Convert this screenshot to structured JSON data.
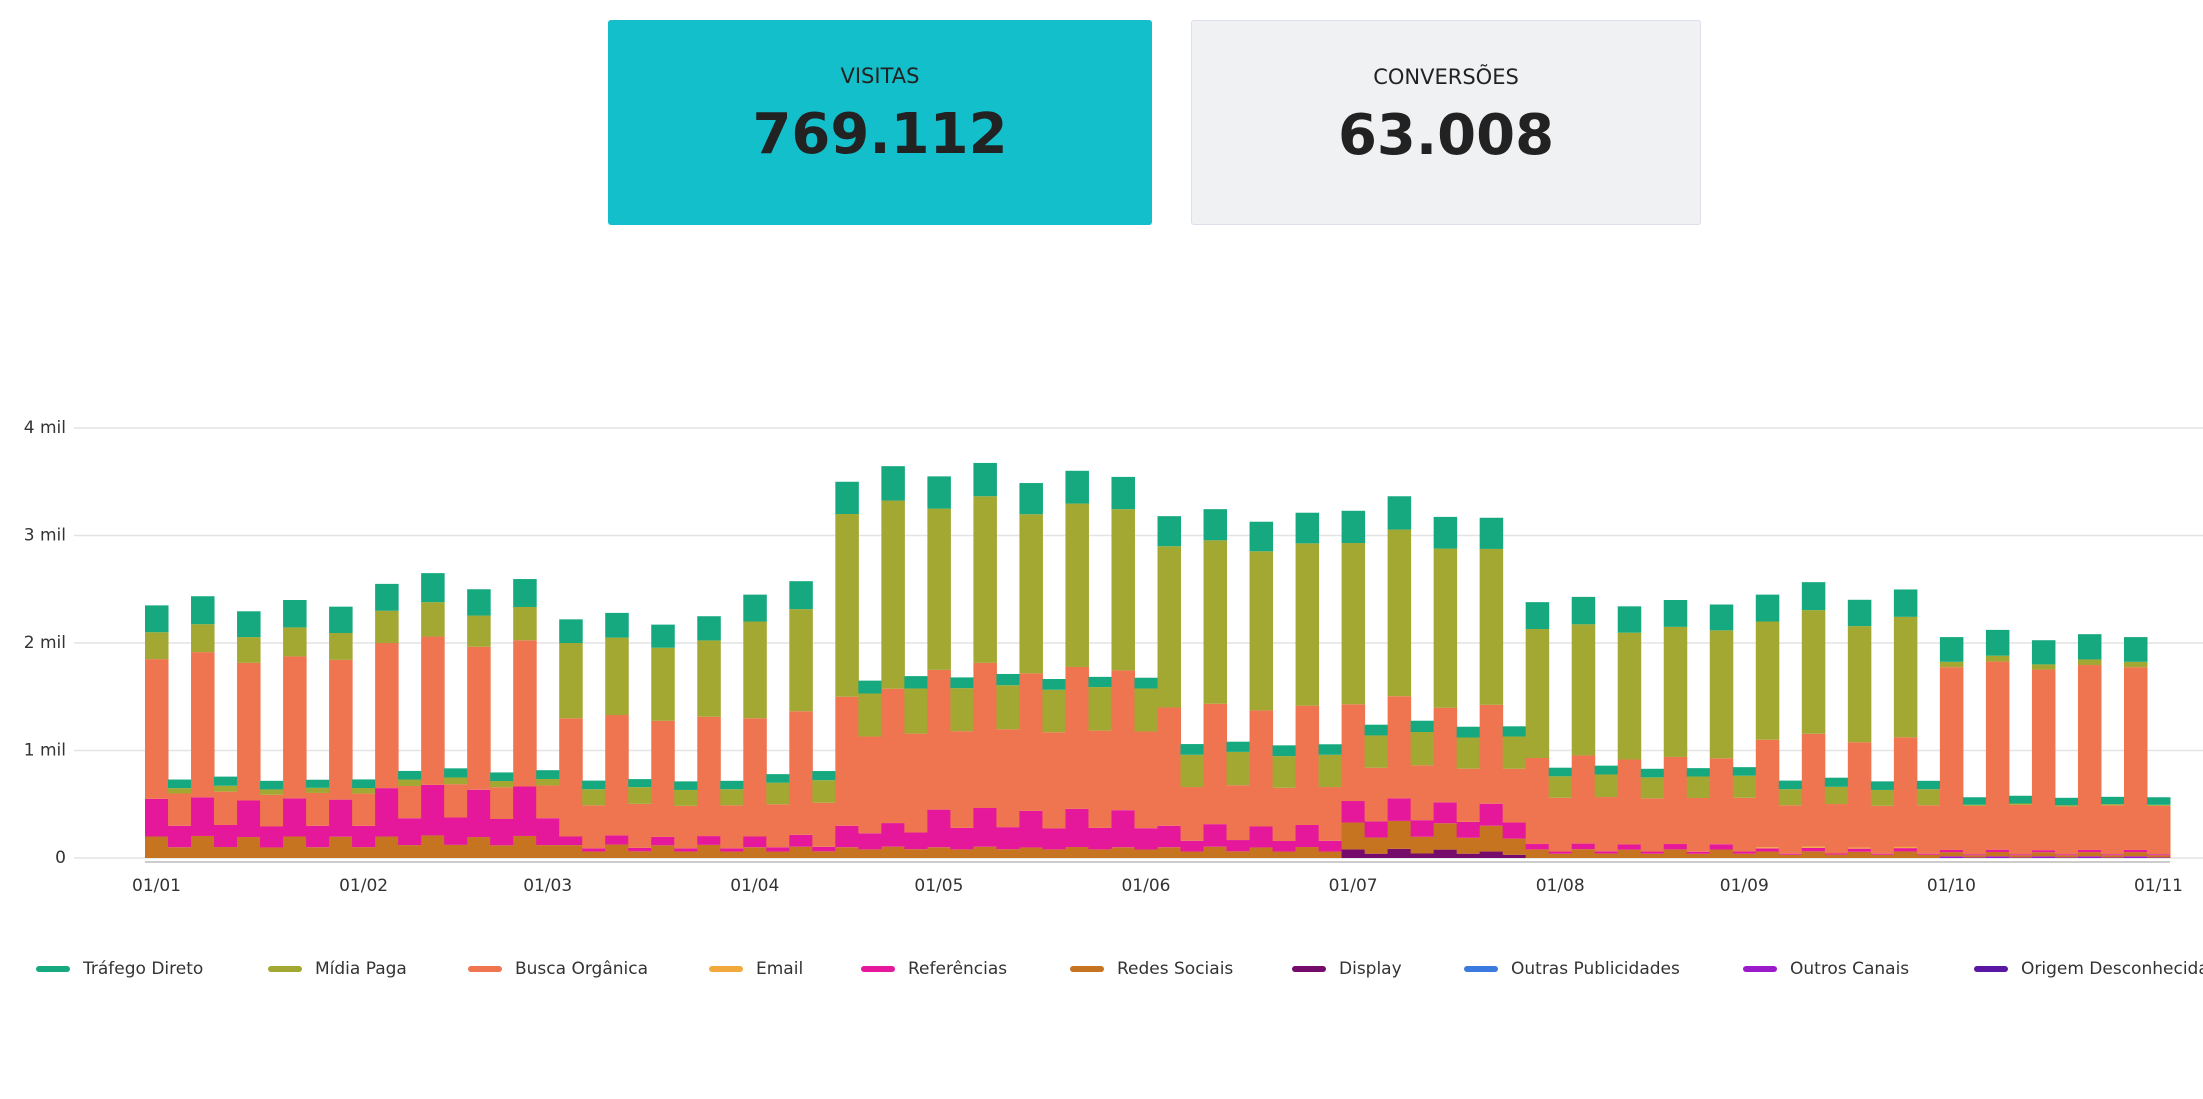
{
  "kpis": [
    {
      "label": "VISITAS",
      "value": "769.112"
    },
    {
      "label": "CONVERSÕES",
      "value": "63.008"
    }
  ],
  "chart_data": {
    "type": "bar",
    "stacked": true,
    "categories": [
      "01/01",
      null,
      null,
      null,
      null,
      null,
      null,
      null,
      null,
      "01/02",
      null,
      null,
      null,
      null,
      null,
      null,
      null,
      "01/03",
      null,
      null,
      null,
      null,
      null,
      null,
      null,
      null,
      "01/04",
      null,
      null,
      null,
      null,
      null,
      null,
      null,
      "01/05",
      null,
      null,
      null,
      null,
      null,
      null,
      null,
      null,
      "01/06",
      null,
      null,
      null,
      null,
      null,
      null,
      null,
      null,
      "01/07",
      null,
      null,
      null,
      null,
      null,
      null,
      null,
      null,
      "01/08",
      null,
      null,
      null,
      null,
      null,
      null,
      null,
      "01/09",
      null,
      null,
      null,
      null,
      null,
      null,
      null,
      null,
      "01/10",
      null,
      null,
      null,
      null,
      null,
      null,
      null,
      null,
      "01/11"
    ],
    "ylim": [
      0,
      4000
    ],
    "yticks": [
      0,
      {
        "value": 1000,
        "label": "1 mil"
      },
      {
        "value": 2000,
        "label": "2 mil"
      },
      {
        "value": 3000,
        "label": "3 mil"
      },
      {
        "value": 4000,
        "label": "4 mil"
      }
    ],
    "grid": true,
    "legend": "bottom",
    "series": [
      {
        "name": "Tráfego Direto",
        "color": "#16a97f",
        "values": [
          250,
          80,
          260,
          85,
          240,
          80,
          255,
          75,
          245,
          80,
          250,
          80,
          270,
          85,
          245,
          80,
          260,
          82,
          220,
          80,
          230,
          75,
          215,
          80,
          225,
          78,
          250,
          80,
          260,
          85,
          300,
          120,
          320,
          115,
          300,
          100,
          310,
          105,
          290,
          100,
          305,
          95,
          300,
          100,
          280,
          100,
          290,
          95,
          275,
          100,
          285,
          98,
          300,
          100,
          310,
          105,
          295,
          100,
          290,
          95,
          250,
          80,
          255,
          82,
          245,
          80,
          250,
          78,
          240,
          80,
          250,
          80,
          260,
          85,
          245,
          80,
          255,
          78,
          230,
          70,
          240,
          72,
          225,
          70,
          235,
          68,
          230,
          70
        ]
      },
      {
        "name": "Mídia Paga",
        "color": "#a3a832",
        "values": [
          250,
          50,
          260,
          55,
          240,
          50,
          270,
          48,
          250,
          52,
          300,
          60,
          320,
          62,
          290,
          58,
          310,
          60,
          700,
          150,
          720,
          155,
          680,
          148,
          710,
          150,
          900,
          200,
          950,
          210,
          1700,
          400,
          1750,
          420,
          1500,
          400,
          1550,
          410,
          1480,
          395,
          1520,
          405,
          1500,
          400,
          1500,
          300,
          1520,
          310,
          1480,
          295,
          1510,
          300,
          1500,
          300,
          1550,
          310,
          1480,
          290,
          1450,
          300,
          1200,
          200,
          1220,
          210,
          1180,
          195,
          1210,
          200,
          1190,
          205,
          1100,
          150,
          1150,
          160,
          1080,
          148,
          1120,
          150,
          50,
          10,
          55,
          12,
          48,
          10,
          52,
          11,
          50,
          10
        ]
      },
      {
        "name": "Busca Orgânica",
        "color": "#ef7450",
        "values": [
          1300,
          300,
          1350,
          310,
          1280,
          295,
          1320,
          305,
          1300,
          300,
          1350,
          300,
          1380,
          310,
          1330,
          295,
          1360,
          305,
          1100,
          400,
          1120,
          410,
          1080,
          395,
          1110,
          400,
          1100,
          400,
          1150,
          410,
          1200,
          900,
          1250,
          920,
          1300,
          900,
          1350,
          910,
          1280,
          895,
          1320,
          905,
          1300,
          900,
          1100,
          500,
          1120,
          510,
          1080,
          495,
          1110,
          500,
          900,
          500,
          950,
          510,
          880,
          495,
          920,
          500,
          800,
          500,
          820,
          505,
          790,
          495,
          810,
          500,
          800,
          500,
          1000,
          450,
          1050,
          460,
          980,
          445,
          1020,
          450,
          1700,
          450,
          1750,
          460,
          1680,
          445,
          1720,
          455,
          1700,
          450
        ]
      },
      {
        "name": "Email",
        "color": "#f2a93b",
        "values": [
          0,
          0,
          0,
          0,
          0,
          0,
          0,
          0,
          0,
          0,
          0,
          0,
          0,
          0,
          0,
          0,
          0,
          0,
          0,
          0,
          0,
          0,
          0,
          0,
          0,
          0,
          0,
          0,
          0,
          0,
          0,
          0,
          0,
          0,
          0,
          0,
          0,
          0,
          0,
          0,
          0,
          0,
          0,
          0,
          0,
          0,
          0,
          0,
          0,
          0,
          0,
          0,
          0,
          0,
          0,
          0,
          0,
          0,
          0,
          0,
          0,
          0,
          0,
          0,
          0,
          0,
          0,
          0,
          0,
          0,
          10,
          0,
          12,
          0,
          10,
          0,
          11,
          0,
          0,
          0,
          0,
          0,
          0,
          0,
          0,
          0,
          0,
          0
        ]
      },
      {
        "name": "Referências",
        "color": "#e5189b",
        "values": [
          350,
          200,
          360,
          205,
          340,
          195,
          355,
          200,
          345,
          198,
          450,
          250,
          470,
          255,
          440,
          245,
          460,
          250,
          80,
          30,
          85,
          32,
          78,
          30,
          82,
          30,
          100,
          40,
          110,
          42,
          200,
          150,
          220,
          155,
          350,
          200,
          360,
          205,
          340,
          195,
          355,
          200,
          345,
          198,
          200,
          100,
          210,
          105,
          195,
          98,
          205,
          100,
          200,
          150,
          210,
          155,
          195,
          148,
          205,
          150,
          50,
          20,
          52,
          21,
          48,
          20,
          50,
          19,
          49,
          20,
          30,
          10,
          32,
          11,
          29,
          10,
          31,
          10,
          20,
          10,
          21,
          10,
          19,
          10,
          20,
          10,
          20,
          10
        ]
      },
      {
        "name": "Redes Sociais",
        "color": "#c6741f",
        "values": [
          200,
          100,
          205,
          102,
          195,
          98,
          200,
          100,
          198,
          101,
          200,
          120,
          210,
          122,
          195,
          118,
          205,
          120,
          120,
          60,
          125,
          62,
          118,
          60,
          122,
          60,
          100,
          60,
          105,
          62,
          100,
          80,
          105,
          82,
          100,
          80,
          105,
          82,
          98,
          80,
          102,
          80,
          100,
          79,
          100,
          60,
          105,
          62,
          98,
          60,
          102,
          60,
          250,
          150,
          260,
          155,
          245,
          148,
          240,
          150,
          80,
          40,
          82,
          41,
          78,
          40,
          80,
          39,
          79,
          40,
          60,
          30,
          62,
          31,
          58,
          30,
          61,
          30,
          40,
          20,
          41,
          20,
          39,
          20,
          40,
          20,
          40,
          20
        ]
      },
      {
        "name": "Display",
        "color": "#750b6b",
        "values": [
          0,
          0,
          0,
          0,
          0,
          0,
          0,
          0,
          0,
          0,
          0,
          0,
          0,
          0,
          0,
          0,
          0,
          0,
          0,
          0,
          0,
          0,
          0,
          0,
          0,
          0,
          0,
          0,
          0,
          0,
          0,
          0,
          0,
          0,
          0,
          0,
          0,
          0,
          0,
          0,
          0,
          0,
          0,
          0,
          0,
          0,
          0,
          0,
          0,
          0,
          0,
          0,
          80,
          40,
          85,
          42,
          78,
          40,
          60,
          30,
          0,
          0,
          0,
          0,
          0,
          0,
          0,
          0,
          0,
          0,
          0,
          0,
          0,
          0,
          0,
          0,
          0,
          0,
          0,
          0,
          0,
          0,
          0,
          0,
          0,
          0,
          0,
          0
        ]
      },
      {
        "name": "Outras Publicidades",
        "color": "#3b7be0",
        "values": [
          0,
          0,
          0,
          0,
          0,
          0,
          0,
          0,
          0,
          0,
          0,
          0,
          0,
          0,
          0,
          0,
          0,
          0,
          0,
          0,
          0,
          0,
          0,
          0,
          0,
          0,
          0,
          0,
          0,
          0,
          0,
          0,
          0,
          0,
          0,
          0,
          0,
          0,
          0,
          0,
          0,
          0,
          0,
          0,
          0,
          0,
          0,
          0,
          0,
          0,
          0,
          0,
          0,
          0,
          0,
          0,
          0,
          0,
          0,
          0,
          0,
          0,
          0,
          0,
          0,
          0,
          0,
          0,
          0,
          0,
          0,
          0,
          0,
          0,
          0,
          0,
          0,
          0,
          0,
          0,
          0,
          0,
          0,
          0,
          0,
          0,
          0,
          0
        ]
      },
      {
        "name": "Outros Canais",
        "color": "#9b1bcc",
        "values": [
          0,
          0,
          0,
          0,
          0,
          0,
          0,
          0,
          0,
          0,
          0,
          0,
          0,
          0,
          0,
          0,
          0,
          0,
          0,
          0,
          0,
          0,
          0,
          0,
          0,
          0,
          0,
          0,
          0,
          0,
          0,
          0,
          0,
          0,
          0,
          0,
          0,
          0,
          0,
          0,
          0,
          0,
          0,
          0,
          0,
          0,
          0,
          0,
          0,
          0,
          0,
          0,
          0,
          0,
          0,
          0,
          0,
          0,
          0,
          0,
          0,
          0,
          0,
          0,
          0,
          0,
          0,
          0,
          0,
          0,
          0,
          0,
          0,
          0,
          0,
          0,
          0,
          0,
          15,
          5,
          15,
          5,
          15,
          5,
          15,
          5,
          15,
          5
        ]
      },
      {
        "name": "Origem Desconhecida",
        "color": "#5a17a4",
        "values": [
          0,
          0,
          0,
          0,
          0,
          0,
          0,
          0,
          0,
          0,
          0,
          0,
          0,
          0,
          0,
          0,
          0,
          0,
          0,
          0,
          0,
          0,
          0,
          0,
          0,
          0,
          0,
          0,
          0,
          0,
          0,
          0,
          0,
          0,
          0,
          0,
          0,
          0,
          0,
          0,
          0,
          0,
          0,
          0,
          0,
          0,
          0,
          0,
          0,
          0,
          0,
          0,
          0,
          0,
          0,
          0,
          0,
          0,
          0,
          0,
          0,
          0,
          0,
          0,
          0,
          0,
          0,
          0,
          0,
          0,
          0,
          0,
          0,
          0,
          0,
          0,
          0,
          0,
          0,
          0,
          0,
          0,
          0,
          0,
          0,
          0,
          0,
          0
        ]
      }
    ]
  }
}
